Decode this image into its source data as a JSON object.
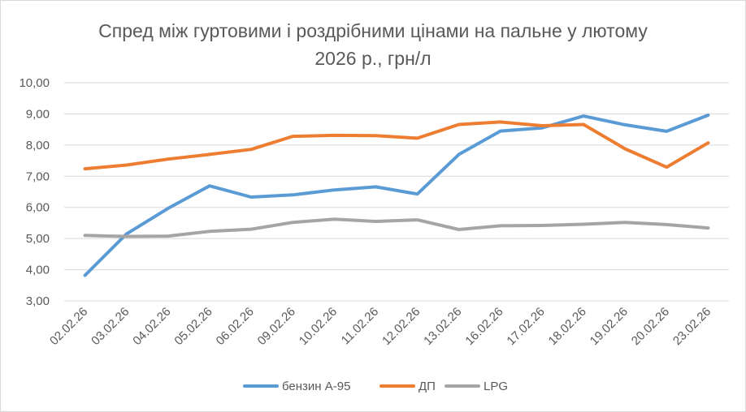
{
  "chart_data": {
    "type": "line",
    "title": "Спред між гуртовими і роздрібними цінами на пальне у лютому 2026 р., грн/л",
    "categories": [
      "02.02.26",
      "03.02.26",
      "04.02.26",
      "05.02.26",
      "06.02.26",
      "09.02.26",
      "10.02.26",
      "11.02.26",
      "12.02.26",
      "13.02.26",
      "16.02.26",
      "17.02.26",
      "18.02.26",
      "19.02.26",
      "20.02.26",
      "23.02.26"
    ],
    "series": [
      {
        "name": "бензин А-95",
        "color": "#5b9bd5",
        "values": [
          3.82,
          5.15,
          5.97,
          6.69,
          6.33,
          6.4,
          6.56,
          6.66,
          6.43,
          7.7,
          8.45,
          8.55,
          8.93,
          8.65,
          8.44,
          8.96
        ]
      },
      {
        "name": "ДП",
        "color": "#ed7d31",
        "values": [
          7.24,
          7.36,
          7.55,
          7.7,
          7.86,
          8.28,
          8.31,
          8.3,
          8.22,
          8.66,
          8.74,
          8.62,
          8.66,
          7.88,
          7.29,
          8.07
        ]
      },
      {
        "name": "LPG",
        "color": "#a5a5a5",
        "values": [
          5.1,
          5.07,
          5.08,
          5.23,
          5.3,
          5.52,
          5.62,
          5.55,
          5.6,
          5.29,
          5.41,
          5.42,
          5.46,
          5.52,
          5.45,
          5.34
        ]
      }
    ],
    "ylim": [
      3,
      10
    ],
    "yticks": [
      "3,00",
      "4,00",
      "5,00",
      "6,00",
      "7,00",
      "8,00",
      "9,00",
      "10,00"
    ],
    "grid": true,
    "legend": "bottom"
  }
}
